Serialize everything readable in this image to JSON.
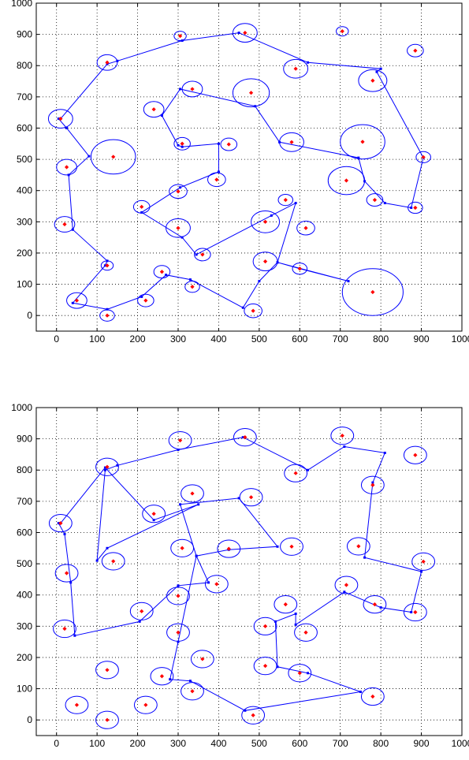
{
  "chart_data": [
    {
      "type": "scatter",
      "title": "",
      "xlabel": "",
      "ylabel": "",
      "xlim": [
        -50,
        1000
      ],
      "ylim": [
        -50,
        1000
      ],
      "xticks": [
        "0",
        "100",
        "200",
        "300",
        "400",
        "500",
        "600",
        "700",
        "800",
        "900",
        "1000"
      ],
      "yticks": [
        "0",
        "100",
        "200",
        "300",
        "400",
        "500",
        "600",
        "700",
        "800",
        "900",
        "1000"
      ],
      "grid": true,
      "colors": {
        "points": "#ff0000",
        "path": "#0000ff",
        "circles": "#0000ff"
      },
      "points": [
        {
          "x": 10,
          "y": 630,
          "r": 30
        },
        {
          "x": 25,
          "y": 475,
          "r": 25
        },
        {
          "x": 20,
          "y": 292,
          "r": 25
        },
        {
          "x": 140,
          "y": 508,
          "r": 55
        },
        {
          "x": 125,
          "y": 810,
          "r": 25
        },
        {
          "x": 305,
          "y": 895,
          "r": 15
        },
        {
          "x": 465,
          "y": 905,
          "r": 30
        },
        {
          "x": 590,
          "y": 790,
          "r": 30
        },
        {
          "x": 705,
          "y": 910,
          "r": 15
        },
        {
          "x": 885,
          "y": 848,
          "r": 20
        },
        {
          "x": 780,
          "y": 752,
          "r": 35
        },
        {
          "x": 905,
          "y": 507,
          "r": 18
        },
        {
          "x": 885,
          "y": 345,
          "r": 18
        },
        {
          "x": 785,
          "y": 370,
          "r": 20
        },
        {
          "x": 755,
          "y": 556,
          "r": 55
        },
        {
          "x": 715,
          "y": 432,
          "r": 45
        },
        {
          "x": 580,
          "y": 555,
          "r": 30
        },
        {
          "x": 480,
          "y": 713,
          "r": 45
        },
        {
          "x": 335,
          "y": 725,
          "r": 25
        },
        {
          "x": 240,
          "y": 660,
          "r": 25
        },
        {
          "x": 310,
          "y": 550,
          "r": 20
        },
        {
          "x": 425,
          "y": 548,
          "r": 20
        },
        {
          "x": 395,
          "y": 435,
          "r": 22
        },
        {
          "x": 300,
          "y": 397,
          "r": 22
        },
        {
          "x": 210,
          "y": 348,
          "r": 20
        },
        {
          "x": 300,
          "y": 280,
          "r": 30
        },
        {
          "x": 360,
          "y": 195,
          "r": 20
        },
        {
          "x": 515,
          "y": 300,
          "r": 35
        },
        {
          "x": 565,
          "y": 370,
          "r": 18
        },
        {
          "x": 615,
          "y": 280,
          "r": 22
        },
        {
          "x": 515,
          "y": 173,
          "r": 30
        },
        {
          "x": 600,
          "y": 150,
          "r": 18
        },
        {
          "x": 780,
          "y": 75,
          "r": 75
        },
        {
          "x": 260,
          "y": 140,
          "r": 20
        },
        {
          "x": 335,
          "y": 92,
          "r": 18
        },
        {
          "x": 485,
          "y": 15,
          "r": 22
        },
        {
          "x": 220,
          "y": 48,
          "r": 20
        },
        {
          "x": 125,
          "y": 0,
          "r": 18
        },
        {
          "x": 50,
          "y": 48,
          "r": 25
        },
        {
          "x": 125,
          "y": 160,
          "r": 15
        }
      ],
      "path": [
        [
          5,
          630
        ],
        [
          25,
          600
        ],
        [
          80,
          510
        ],
        [
          30,
          450
        ],
        [
          40,
          275
        ],
        [
          125,
          175
        ],
        [
          120,
          160
        ],
        [
          40,
          40
        ],
        [
          125,
          20
        ],
        [
          210,
          60
        ],
        [
          270,
          130
        ],
        [
          330,
          115
        ],
        [
          460,
          25
        ],
        [
          500,
          110
        ],
        [
          545,
          170
        ],
        [
          720,
          110
        ],
        [
          600,
          150
        ],
        [
          545,
          170
        ],
        [
          590,
          360
        ],
        [
          530,
          320
        ],
        [
          345,
          195
        ],
        [
          310,
          250
        ],
        [
          210,
          330
        ],
        [
          305,
          410
        ],
        [
          400,
          460
        ],
        [
          400,
          550
        ],
        [
          310,
          540
        ],
        [
          300,
          545
        ],
        [
          260,
          640
        ],
        [
          305,
          725
        ],
        [
          490,
          670
        ],
        [
          550,
          555
        ],
        [
          745,
          505
        ],
        [
          760,
          430
        ],
        [
          810,
          360
        ],
        [
          875,
          345
        ],
        [
          905,
          505
        ],
        [
          790,
          780
        ],
        [
          800,
          790
        ],
        [
          620,
          810
        ],
        [
          450,
          905
        ],
        [
          310,
          880
        ],
        [
          150,
          815
        ],
        [
          125,
          805
        ],
        [
          10,
          630
        ]
      ]
    },
    {
      "type": "scatter",
      "title": "",
      "xlabel": "",
      "ylabel": "",
      "xlim": [
        -50,
        1000
      ],
      "ylim": [
        -50,
        1000
      ],
      "xticks": [
        "0",
        "100",
        "200",
        "300",
        "400",
        "500",
        "600",
        "700",
        "800",
        "900",
        "1000"
      ],
      "yticks": [
        "0",
        "100",
        "200",
        "300",
        "400",
        "500",
        "600",
        "700",
        "800",
        "900",
        "1000"
      ],
      "grid": true,
      "colors": {
        "points": "#ff0000",
        "path": "#0000ff",
        "circles": "#0000ff"
      },
      "points": [
        {
          "x": 10,
          "y": 630,
          "r": 28
        },
        {
          "x": 25,
          "y": 470,
          "r": 28
        },
        {
          "x": 20,
          "y": 292,
          "r": 28
        },
        {
          "x": 140,
          "y": 508,
          "r": 28
        },
        {
          "x": 125,
          "y": 810,
          "r": 28
        },
        {
          "x": 305,
          "y": 895,
          "r": 28
        },
        {
          "x": 465,
          "y": 905,
          "r": 28
        },
        {
          "x": 590,
          "y": 790,
          "r": 28
        },
        {
          "x": 705,
          "y": 910,
          "r": 28
        },
        {
          "x": 885,
          "y": 848,
          "r": 28
        },
        {
          "x": 780,
          "y": 752,
          "r": 28
        },
        {
          "x": 905,
          "y": 507,
          "r": 28
        },
        {
          "x": 885,
          "y": 345,
          "r": 28
        },
        {
          "x": 785,
          "y": 370,
          "r": 28
        },
        {
          "x": 745,
          "y": 556,
          "r": 28
        },
        {
          "x": 715,
          "y": 432,
          "r": 28
        },
        {
          "x": 580,
          "y": 555,
          "r": 28
        },
        {
          "x": 480,
          "y": 713,
          "r": 28
        },
        {
          "x": 335,
          "y": 725,
          "r": 28
        },
        {
          "x": 240,
          "y": 660,
          "r": 28
        },
        {
          "x": 310,
          "y": 550,
          "r": 28
        },
        {
          "x": 425,
          "y": 548,
          "r": 28
        },
        {
          "x": 395,
          "y": 435,
          "r": 28
        },
        {
          "x": 300,
          "y": 397,
          "r": 28
        },
        {
          "x": 210,
          "y": 348,
          "r": 28
        },
        {
          "x": 300,
          "y": 280,
          "r": 28
        },
        {
          "x": 360,
          "y": 195,
          "r": 28
        },
        {
          "x": 515,
          "y": 300,
          "r": 28
        },
        {
          "x": 565,
          "y": 370,
          "r": 28
        },
        {
          "x": 615,
          "y": 280,
          "r": 28
        },
        {
          "x": 515,
          "y": 173,
          "r": 28
        },
        {
          "x": 600,
          "y": 150,
          "r": 28
        },
        {
          "x": 780,
          "y": 75,
          "r": 28
        },
        {
          "x": 260,
          "y": 140,
          "r": 28
        },
        {
          "x": 335,
          "y": 92,
          "r": 28
        },
        {
          "x": 485,
          "y": 15,
          "r": 28
        },
        {
          "x": 220,
          "y": 48,
          "r": 28
        },
        {
          "x": 125,
          "y": 0,
          "r": 28
        },
        {
          "x": 50,
          "y": 48,
          "r": 28
        },
        {
          "x": 125,
          "y": 160,
          "r": 28
        }
      ],
      "path": [
        [
          5,
          630
        ],
        [
          20,
          595
        ],
        [
          35,
          440
        ],
        [
          45,
          270
        ],
        [
          205,
          315
        ],
        [
          300,
          430
        ],
        [
          375,
          440
        ],
        [
          345,
          525
        ],
        [
          305,
          690
        ],
        [
          450,
          710
        ],
        [
          545,
          555
        ],
        [
          425,
          545
        ],
        [
          345,
          525
        ],
        [
          300,
          250
        ],
        [
          280,
          130
        ],
        [
          330,
          125
        ],
        [
          465,
          30
        ],
        [
          750,
          90
        ],
        [
          620,
          150
        ],
        [
          545,
          170
        ],
        [
          540,
          315
        ],
        [
          590,
          340
        ],
        [
          590,
          305
        ],
        [
          710,
          410
        ],
        [
          800,
          360
        ],
        [
          875,
          345
        ],
        [
          900,
          475
        ],
        [
          760,
          520
        ],
        [
          780,
          760
        ],
        [
          810,
          855
        ],
        [
          710,
          875
        ],
        [
          620,
          800
        ],
        [
          460,
          905
        ],
        [
          300,
          865
        ],
        [
          150,
          815
        ],
        [
          120,
          800
        ],
        [
          100,
          510
        ],
        [
          125,
          550
        ],
        [
          350,
          690
        ],
        [
          240,
          640
        ],
        [
          120,
          808
        ],
        [
          10,
          630
        ]
      ]
    }
  ]
}
